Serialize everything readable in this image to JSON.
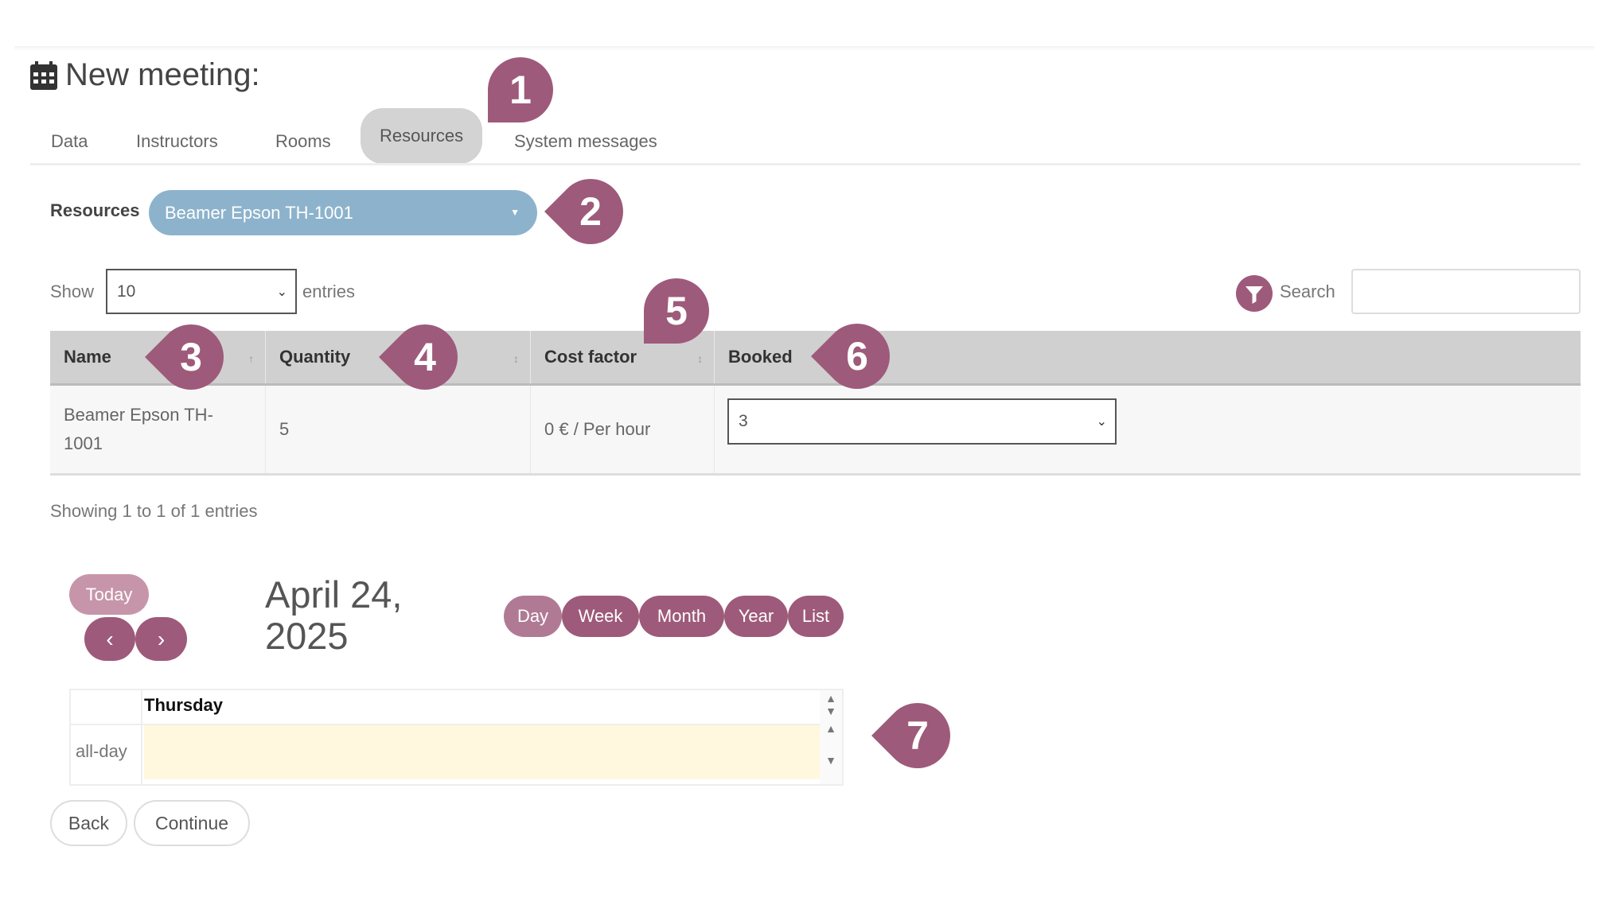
{
  "page": {
    "title": "New meeting:",
    "icon": "calendar-icon"
  },
  "tabs": [
    {
      "label": "Data"
    },
    {
      "label": "Instructors"
    },
    {
      "label": "Rooms"
    },
    {
      "label": "Resources",
      "active": true
    },
    {
      "label": "System messages"
    }
  ],
  "resources": {
    "label": "Resources",
    "selected": "Beamer Epson TH-1001"
  },
  "length": {
    "show": "Show",
    "value": "10",
    "entries": "entries"
  },
  "search": {
    "label": "Search",
    "value": "",
    "icon": "filter-icon"
  },
  "table": {
    "headers": [
      "Name",
      "Quantity",
      "Cost factor",
      "Booked"
    ],
    "rows": [
      {
        "name": "Beamer Epson TH-1001",
        "quantity": "5",
        "cost": "0 € / Per hour",
        "booked": "3"
      }
    ]
  },
  "info": "Showing 1 to 1 of 1 entries",
  "calendar": {
    "today": "Today",
    "date_line1": "April 24,",
    "date_line2": "2025",
    "views": [
      "Day",
      "Week",
      "Month",
      "Year",
      "List"
    ],
    "active_view": "Day",
    "day_header": "Thursday",
    "allday": "all-day"
  },
  "actions": {
    "back": "Back",
    "continue": "Continue"
  },
  "markers": [
    "1",
    "2",
    "3",
    "4",
    "5",
    "6",
    "7"
  ],
  "colors": {
    "accent": "#9e5a7a",
    "select": "#8db3cc",
    "allday": "#fff8de"
  }
}
